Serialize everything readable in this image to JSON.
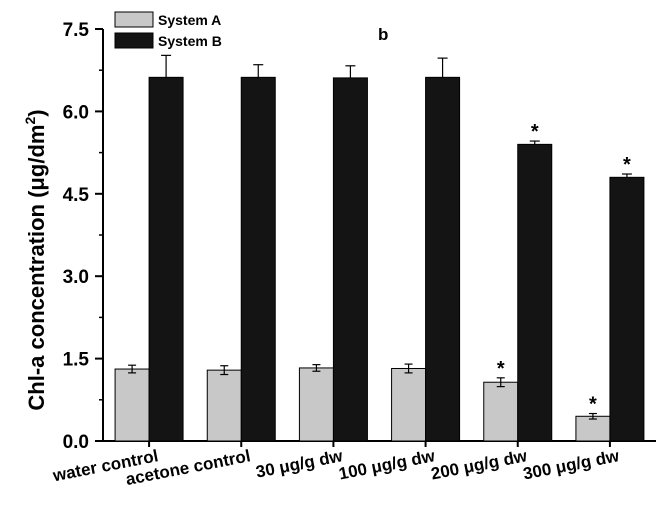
{
  "chart_data": {
    "type": "bar",
    "panel_label": "b",
    "ylabel": "Chl-a concentration (μg/dm",
    "ylabel_sup": "2",
    "ylabel_close": ")",
    "ylim": [
      0,
      7.5
    ],
    "yticks": [
      "0.0",
      "1.5",
      "3.0",
      "4.5",
      "6.0",
      "7.5"
    ],
    "ytick_values": [
      0,
      1.5,
      3.0,
      4.5,
      6.0,
      7.5
    ],
    "categories": [
      "water control",
      "acetone control",
      "30 μg/g dw",
      "100 μg/g dw",
      "200 μg/g dw",
      "300 μg/g dw"
    ],
    "legend_position": "top-left",
    "grid": false,
    "series": [
      {
        "name": "System A",
        "color": "#c8c8c8",
        "values": [
          1.31,
          1.29,
          1.33,
          1.32,
          1.07,
          0.45
        ],
        "errors": [
          0.07,
          0.08,
          0.06,
          0.08,
          0.08,
          0.05
        ],
        "significant": [
          false,
          false,
          false,
          false,
          true,
          true
        ]
      },
      {
        "name": "System B",
        "color": "#141414",
        "values": [
          6.62,
          6.62,
          6.61,
          6.62,
          5.4,
          4.8
        ],
        "errors": [
          0.4,
          0.23,
          0.22,
          0.35,
          0.06,
          0.06
        ],
        "significant": [
          false,
          false,
          false,
          false,
          true,
          true
        ]
      }
    ],
    "significance_marker": "*"
  }
}
